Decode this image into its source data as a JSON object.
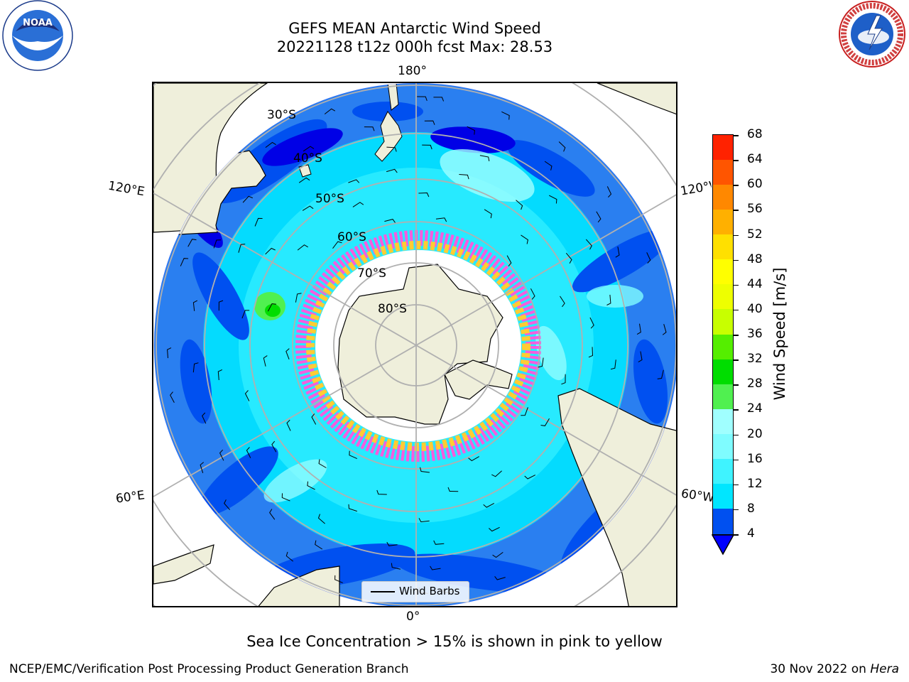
{
  "header": {
    "title_line1": "GEFS MEAN Antarctic Wind Speed",
    "title_line2": "20221128 t12z 000h fcst   Max: 28.53"
  },
  "logos": {
    "left": {
      "name": "noaa-logo",
      "text": "NOAA",
      "ring_text": "NATIONAL OCEANIC AND ATMOSPHERIC ADMINISTRATION · U.S. DEPARTMENT OF COMMERCE"
    },
    "right": {
      "name": "nws-logo",
      "ring_text": "NATIONAL WEATHER SERVICE"
    }
  },
  "map": {
    "projection": "south-polar-stereographic",
    "lon_labels": {
      "top": "180°",
      "bottom": "0°",
      "left_upper": "120°E",
      "left_lower": "60°E",
      "right_upper": "120°W",
      "right_lower": "60°W"
    },
    "lat_labels": [
      "30°S",
      "40°S",
      "50°S",
      "60°S",
      "70°S",
      "80°S"
    ],
    "colors": {
      "land": "#efefdb",
      "ocean_low": "#0050f0",
      "ocean_mid": "#00e6ff",
      "ocean_light": "#a0ffff",
      "ice_edge_pink": "#ff55dd",
      "ice_edge_yellow": "#ffcc33",
      "grid": "#b0b0b0"
    }
  },
  "colorbar": {
    "label": "Wind Speed [m/s]",
    "ticks": [
      "4",
      "8",
      "12",
      "16",
      "20",
      "24",
      "28",
      "32",
      "36",
      "40",
      "44",
      "48",
      "52",
      "56",
      "60",
      "64",
      "68"
    ],
    "colors": [
      "#0050f0",
      "#00e6ff",
      "#3ff3ff",
      "#7ffcff",
      "#a0ffff",
      "#50f050",
      "#00dd00",
      "#55ee00",
      "#c8ff00",
      "#eeff00",
      "#ffff00",
      "#ffe000",
      "#ffb000",
      "#ff8800",
      "#ff5500",
      "#ff2200"
    ],
    "extend_color": "#0000ff"
  },
  "legend": {
    "label": "Wind Barbs"
  },
  "caption": "Sea Ice Concentration > 15% is shown in pink to yellow",
  "footer": {
    "left": "NCEP/EMC/Verification Post Processing Product Generation Branch",
    "right_date": "30 Nov 2022 on ",
    "right_machine": "Hera"
  }
}
